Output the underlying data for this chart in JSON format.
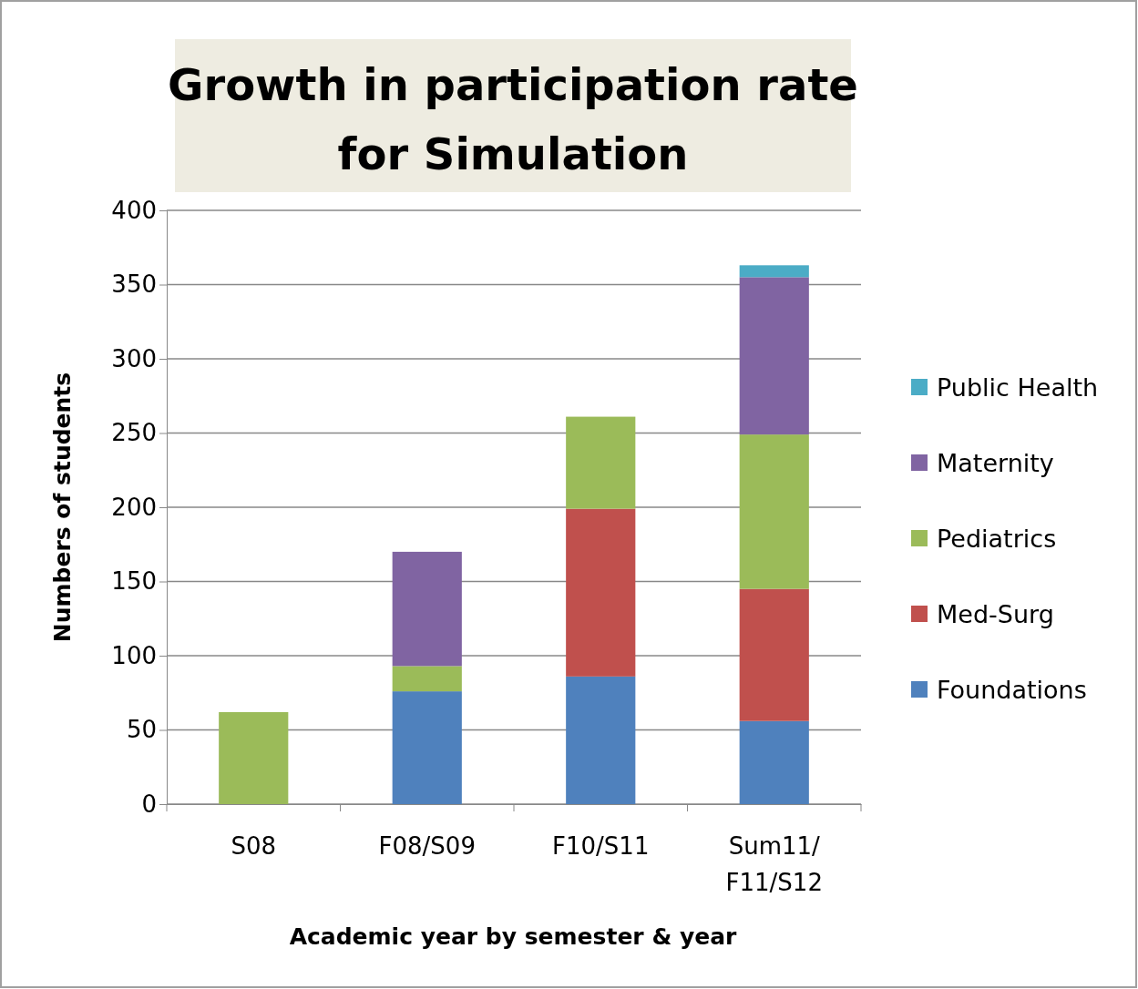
{
  "chart_data": {
    "type": "bar",
    "title": "Growth in participation rate for Simulation",
    "xlabel": "Academic year by semester & year",
    "ylabel": "Numbers of students",
    "categories": [
      "S08",
      "F08/S09",
      "F10/S11",
      "Sum11/ F11/S12"
    ],
    "stacked": true,
    "ylim": [
      0,
      400
    ],
    "yticks": [
      0,
      50,
      100,
      150,
      200,
      250,
      300,
      350,
      400
    ],
    "grid": "y",
    "legend": "right",
    "series": [
      {
        "name": "Foundations",
        "color": "#4f81bd",
        "values": [
          null,
          76,
          86,
          56
        ]
      },
      {
        "name": "Med-Surg",
        "color": "#c0504d",
        "values": [
          null,
          null,
          113,
          89
        ]
      },
      {
        "name": "Pediatrics",
        "color": "#9bbb59",
        "values": [
          62,
          17,
          62,
          104
        ]
      },
      {
        "name": "Maternity",
        "color": "#8064a2",
        "values": [
          null,
          77,
          null,
          106
        ]
      },
      {
        "name": "Public Health",
        "color": "#4bacc6",
        "values": [
          null,
          null,
          null,
          8
        ]
      }
    ]
  }
}
